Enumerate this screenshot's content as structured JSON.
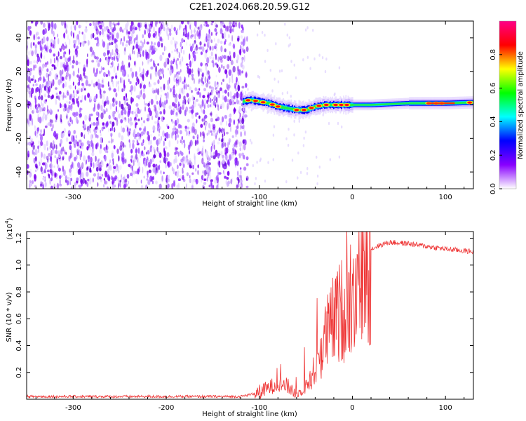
{
  "title": "C2E1.2024.068.20.59.G12",
  "chart_data": [
    {
      "type": "heatmap",
      "xlabel": "Height of straight line (km)",
      "ylabel": "Frequency (Hz)",
      "xlim": [
        -350,
        130
      ],
      "ylim": [
        -50,
        50
      ],
      "xticks": [
        -300,
        -200,
        -100,
        0,
        100
      ],
      "yticks": [
        -40,
        -20,
        0,
        20,
        40
      ],
      "noise_region": {
        "x": [
          -350,
          -115
        ],
        "y": [
          -50,
          50
        ]
      },
      "signal_track": {
        "x": [
          -118,
          -110,
          -100,
          -90,
          -80,
          -70,
          -60,
          -50,
          -40,
          -30,
          -20,
          -10,
          0,
          20,
          40,
          60,
          80,
          100,
          130
        ],
        "y": [
          2,
          3,
          2,
          1,
          -1,
          -2,
          -3,
          -3,
          -1,
          0,
          0,
          0,
          0,
          0,
          0.5,
          1,
          1,
          1,
          1.5
        ]
      },
      "colorbar": {
        "label": "Normalized spectral amplitude",
        "range": [
          0,
          1
        ],
        "ticks": [
          "0.0",
          "0.2",
          "0.4",
          "0.6",
          "0.8"
        ],
        "colors": [
          "#ffffff",
          "#8800ff",
          "#0000ff",
          "#00ffff",
          "#00ff00",
          "#ffff00",
          "#ff0000",
          "#ff0088"
        ]
      }
    },
    {
      "type": "line",
      "xlabel": "Height of straight line (km)",
      "ylabel": "SNR (10 * v/v)",
      "multiplier": "(x10",
      "multiplier_exp": "4",
      "multiplier_close": ")",
      "xlim": [
        -350,
        130
      ],
      "ylim": [
        0,
        1.25
      ],
      "xticks": [
        -300,
        -200,
        -100,
        0,
        100
      ],
      "yticks": [
        "0.2",
        "0.4",
        "0.6",
        "0.8",
        "1.0",
        "1.2"
      ],
      "color": "#ee3333",
      "envelope": {
        "x": [
          -350,
          -120,
          -100,
          -80,
          -70,
          -60,
          -50,
          -40,
          -30,
          -20,
          -10,
          0,
          10,
          20,
          30,
          40,
          60,
          80,
          100,
          130
        ],
        "y": [
          0.02,
          0.02,
          0.05,
          0.12,
          0.1,
          0.04,
          0.1,
          0.25,
          0.5,
          0.65,
          0.75,
          0.9,
          1.05,
          1.12,
          1.15,
          1.17,
          1.16,
          1.14,
          1.12,
          1.1
        ]
      }
    }
  ]
}
